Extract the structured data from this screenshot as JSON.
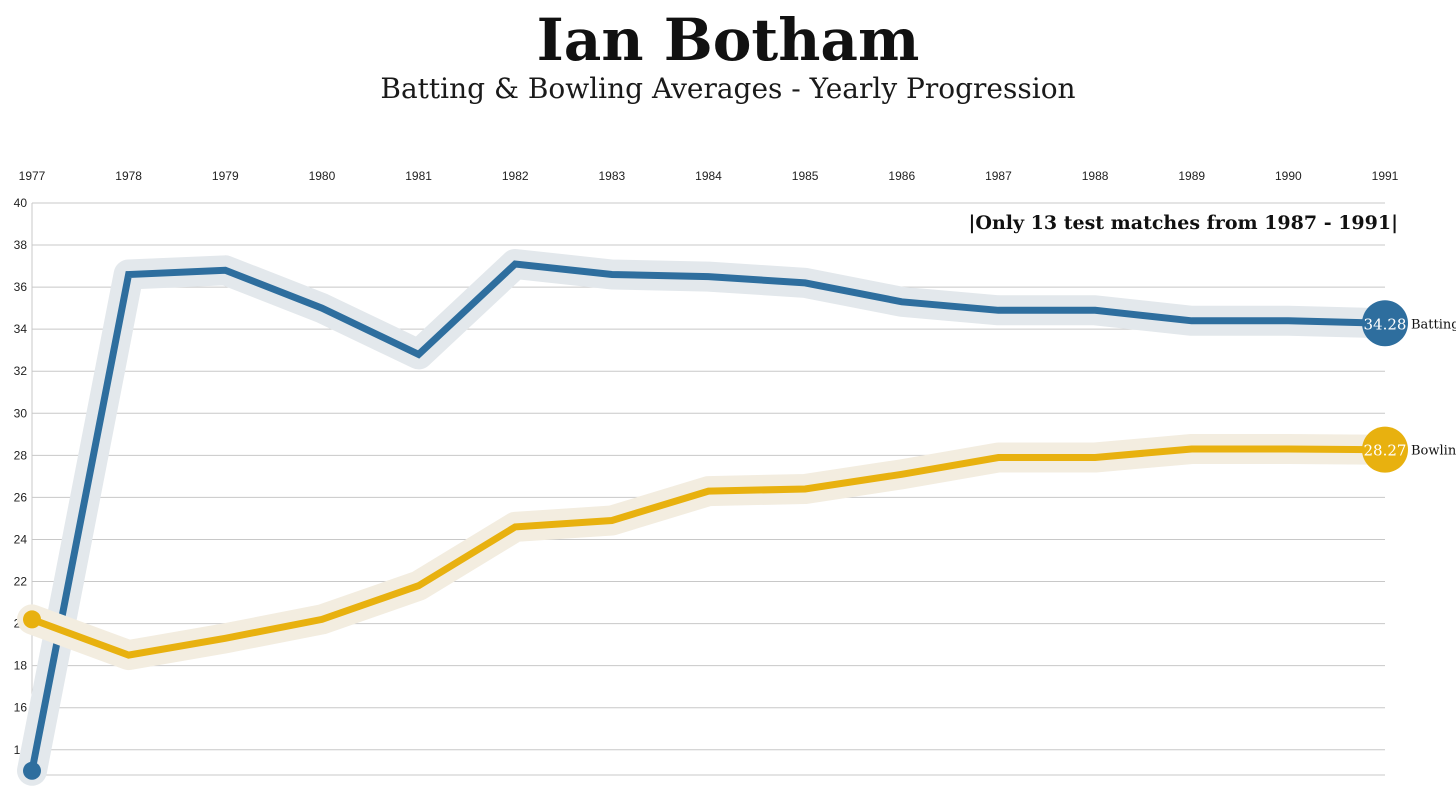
{
  "header": {
    "title": "Ian Botham",
    "subtitle": "Batting & Bowling Averages - Yearly Progression"
  },
  "chart_data": {
    "type": "line",
    "x": [
      "1977",
      "1978",
      "1979",
      "1980",
      "1981",
      "1982",
      "1983",
      "1984",
      "1985",
      "1986",
      "1987",
      "1988",
      "1989",
      "1990",
      "1991"
    ],
    "ylim": [
      12.8,
      40
    ],
    "yticks": [
      14,
      16,
      18,
      20,
      22,
      24,
      26,
      28,
      30,
      32,
      34,
      36,
      38,
      40
    ],
    "grid": true,
    "x_axis_position": "top",
    "annotation": "|Only 13 test matches from 1987 - 1991|",
    "series": [
      {
        "name": "Batting",
        "color": "#2e6e9e",
        "halo": "#e3e8ec",
        "values": [
          13.0,
          36.6,
          36.8,
          35.0,
          32.8,
          37.1,
          36.6,
          36.5,
          36.2,
          35.3,
          34.9,
          34.9,
          34.4,
          34.4,
          34.28
        ],
        "end_label": "34.28"
      },
      {
        "name": "Bowling",
        "color": "#e8b10f",
        "halo": "#f3ede0",
        "values": [
          20.2,
          18.5,
          19.3,
          20.2,
          21.8,
          24.6,
          24.9,
          26.3,
          26.4,
          27.1,
          27.9,
          27.9,
          28.3,
          28.3,
          28.27
        ],
        "end_label": "28.27"
      }
    ]
  }
}
